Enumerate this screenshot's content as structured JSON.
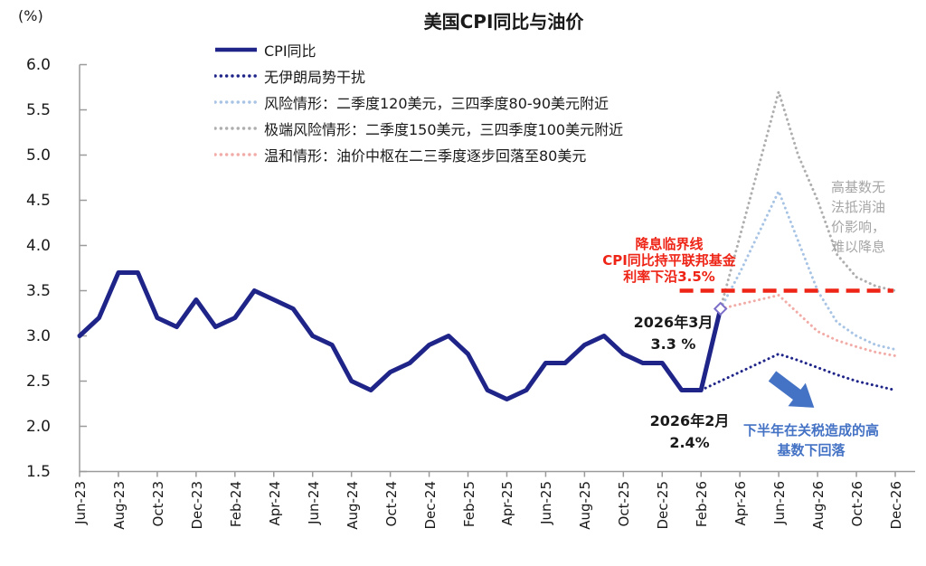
{
  "title": "美国CPI同比与油价",
  "unit_label": "(%)",
  "legend": [
    {
      "label": "CPI同比",
      "style": "solid",
      "color": "#1f2488"
    },
    {
      "label": "无伊朗局势干扰",
      "style": "dotted",
      "color": "#1f2488"
    },
    {
      "label": "风险情形：二季度120美元，三四季度80-90美元附近",
      "style": "dotted",
      "color": "#a8c4e5"
    },
    {
      "label": "极端风险情形：二季度150美元，三四季度100美元附近",
      "style": "dotted",
      "color": "#aeaeae"
    },
    {
      "label": "温和情形：油价中枢在二三季度逐步回落至80美元",
      "style": "dotted",
      "color": "#f2aca8"
    }
  ],
  "chart_data": {
    "type": "line",
    "months_total": 43,
    "x_start": "Jun-23",
    "x_end": "Dec-26",
    "x_tick_labels": [
      "Jun-23",
      "Aug-23",
      "Oct-23",
      "Dec-23",
      "Feb-24",
      "Apr-24",
      "Jun-24",
      "Aug-24",
      "Oct-24",
      "Dec-24",
      "Feb-25",
      "Apr-25",
      "Jun-25",
      "Aug-25",
      "Oct-25",
      "Dec-25",
      "Feb-26",
      "Apr-26",
      "Jun-26",
      "Aug-26",
      "Oct-26",
      "Dec-26"
    ],
    "x_tick_month_indices": [
      0,
      2,
      4,
      6,
      8,
      10,
      12,
      14,
      16,
      18,
      20,
      22,
      24,
      26,
      28,
      30,
      32,
      34,
      36,
      38,
      40,
      42
    ],
    "ylim": [
      1.5,
      6.0
    ],
    "y_ticks": [
      6.0,
      5.5,
      5.0,
      4.5,
      4.0,
      3.5,
      3.0,
      2.5,
      2.0,
      1.5
    ],
    "grid": false,
    "legend_position": "top",
    "series": [
      {
        "name": "CPI同比",
        "style": "solid",
        "color": "#1f2488",
        "start_index": 0,
        "values": [
          3.0,
          3.2,
          3.7,
          3.7,
          3.2,
          3.1,
          3.4,
          3.1,
          3.2,
          3.5,
          3.4,
          3.3,
          3.0,
          2.9,
          2.5,
          2.4,
          2.6,
          2.7,
          2.9,
          3.0,
          2.8,
          2.4,
          2.3,
          2.4,
          2.7,
          2.7,
          2.9,
          3.0,
          2.8,
          2.7,
          2.7,
          2.4,
          2.4,
          3.3
        ]
      },
      {
        "name": "无伊朗局势干扰",
        "style": "dotted",
        "color": "#1f2488",
        "start_index": 32,
        "values": [
          2.4,
          2.5,
          2.6,
          2.7,
          2.8,
          2.73,
          2.65,
          2.57,
          2.5,
          2.45,
          2.4
        ]
      },
      {
        "name": "风险情形：二季度120美元，三四季度80-90美元附近",
        "style": "dotted",
        "color": "#a8c4e5",
        "start_index": 33,
        "values": [
          3.3,
          3.7,
          4.15,
          4.6,
          4.05,
          3.5,
          3.15,
          3.0,
          2.9,
          2.85
        ]
      },
      {
        "name": "极端风险情形：二季度150美元，三四季度100美元附近",
        "style": "dotted",
        "color": "#aeaeae",
        "start_index": 33,
        "values": [
          3.3,
          4.1,
          4.9,
          5.7,
          5.0,
          4.5,
          3.9,
          3.65,
          3.55,
          3.5
        ]
      },
      {
        "name": "温和情形：油价中枢在二三季度逐步回落至80美元",
        "style": "dotted",
        "color": "#f2aca8",
        "start_index": 33,
        "values": [
          3.3,
          3.35,
          3.4,
          3.45,
          3.25,
          3.05,
          2.95,
          2.88,
          2.82,
          2.78
        ]
      }
    ],
    "threshold_line": {
      "value": 3.5,
      "style": "dashed",
      "color": "#ee2416",
      "from_month_index": 30.9,
      "to_month_index": 41.9
    },
    "end_marker": {
      "month_index": 33,
      "value": 3.3,
      "shape": "diamond",
      "fill": "#ffffff",
      "stroke": "#7b6ec9"
    }
  },
  "annotations": {
    "rate_cut": {
      "text": "降息临界线\nCPI同比持平联邦基金\n利率下沿3.5%",
      "color": "#ee2416"
    },
    "mar_2026": {
      "text": "2026年3月\n3.3 %",
      "color": "#1a1a1a"
    },
    "feb_2026": {
      "text": "2026年2月\n2.4%",
      "color": "#1a1a1a"
    },
    "high_base": {
      "text": "高基数无\n法抵消油\n价影响，\n难以降息",
      "color": "#a6a6a6"
    },
    "tariff": {
      "text": "下半年在关税造成的高\n基数下回落",
      "color": "#4472c4",
      "arrow_icon": "arrow-down-right"
    }
  },
  "axis_color": "#9b9b9b"
}
